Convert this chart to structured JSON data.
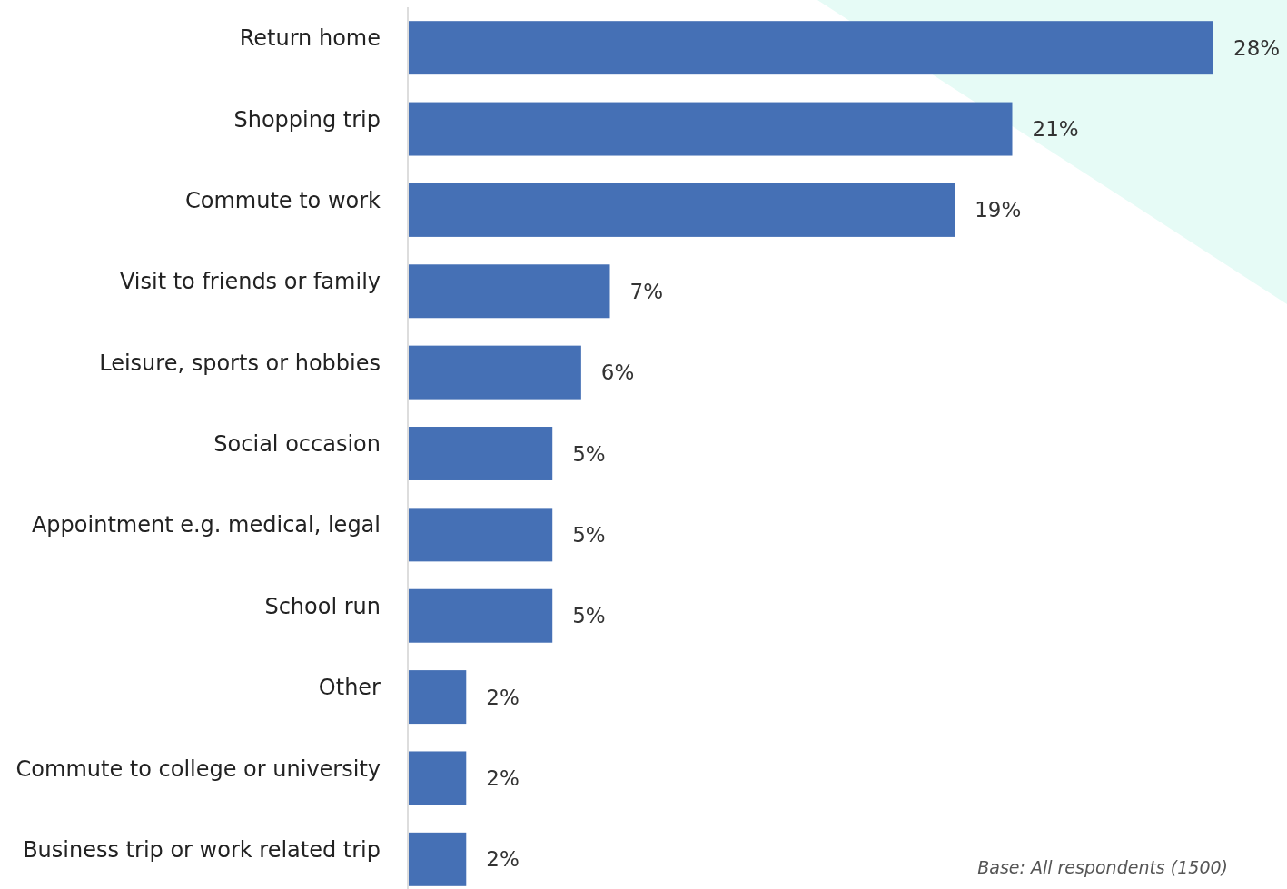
{
  "chart_data": {
    "type": "bar",
    "orientation": "horizontal",
    "categories": [
      "Return home",
      "Shopping trip",
      "Commute to work",
      "Visit to friends or family",
      "Leisure, sports or hobbies",
      "Social occasion",
      "Appointment e.g. medical, legal",
      "School run",
      "Other",
      "Commute to college or university",
      "Business trip or work related trip"
    ],
    "values": [
      28,
      21,
      19,
      7,
      6,
      5,
      5,
      5,
      2,
      2,
      2
    ],
    "value_labels": [
      "28%",
      "21%",
      "19%",
      "7%",
      "6%",
      "5%",
      "5%",
      "5%",
      "2%",
      "2%",
      "2%"
    ],
    "color": "#4570b5",
    "xlim": [
      0,
      28
    ],
    "tick_labels": "y",
    "annotations": [
      "Base: All respondents (1500)"
    ]
  }
}
